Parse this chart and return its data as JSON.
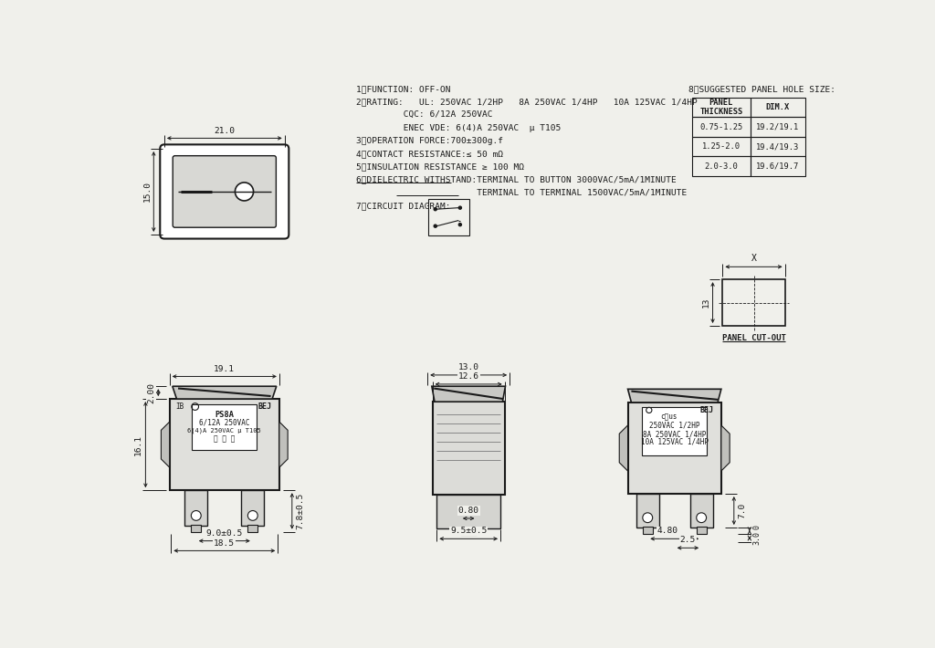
{
  "bg_color": "#f0f0eb",
  "line_color": "#1a1a1a",
  "specs": [
    "1、FUNCTION: OFF-ON",
    "2、RATING:   UL: 250VAC 1/2HP   8A 250VAC 1/4HP   10A 125VAC 1/4HP",
    "         CQC: 6/12A 250VAC",
    "         ENEC VDE: 6(4)A 250VAC  μ T105",
    "3、OPERATION FORCE:700±300g.f",
    "4、CONTACT RESISTANCE:≤ 50 mΩ",
    "5、INSULATION RESISTANCE ≥ 100 MΩ",
    "6、DIELECTRIC WITHSTAND:TERMINAL TO BUTTON 3000VAC/5mA/1MINUTE",
    "                       TERMINAL TO TERMINAL 1500VAC/5mA/1MINUTE",
    "7、CIRCUIT DIAGRAM:"
  ],
  "underline_rows": [
    7,
    8
  ],
  "table_title": "8、SUGGESTED PANEL HOLE SIZE:",
  "table_headers": [
    "PANEL\nTHICKNESS",
    "DIM.X"
  ],
  "table_rows": [
    [
      "0.75-1.25",
      "19.2/19.1"
    ],
    [
      "1.25-2.0",
      "19.4/19.3"
    ],
    [
      "2.0-3.0",
      "19.6/19.7"
    ]
  ],
  "font_size": 6.8,
  "font_family": "monospace"
}
